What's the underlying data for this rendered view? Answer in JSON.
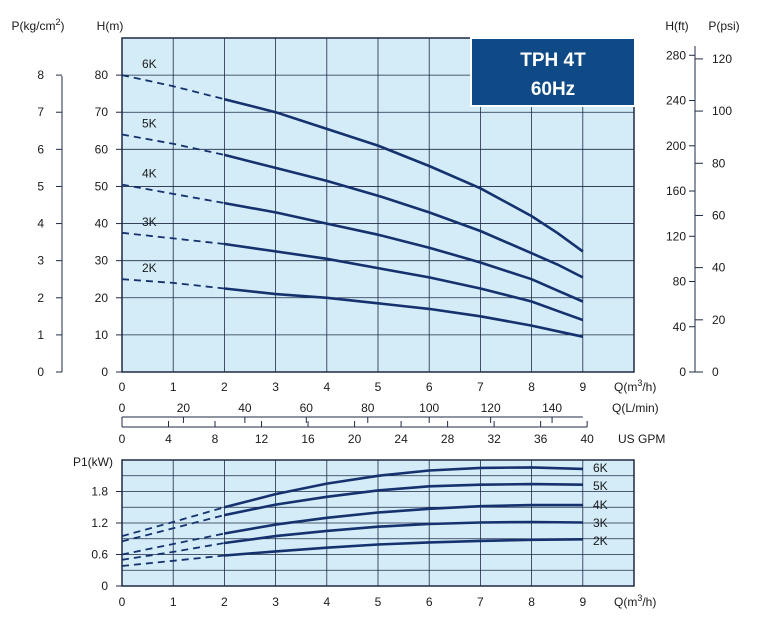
{
  "colors": {
    "plot_bg": "#d3ecf8",
    "grid": "#1f2a44",
    "curve": "#15326e",
    "badge_bg": "#0f4a86",
    "badge_border": "#ffffff",
    "text": "#1a1a1a"
  },
  "badge": {
    "line1": "TPH 4T",
    "line2": "60Hz"
  },
  "chart_data": [
    {
      "type": "line",
      "name_on_chart": "head",
      "x_unit": "Q(m³/h)",
      "xlim": [
        0,
        10
      ],
      "ylim": [
        0,
        90
      ],
      "grid": true,
      "axes": {
        "left_inner": {
          "label": "H(m)",
          "ticks": [
            "0",
            "10",
            "20",
            "30",
            "40",
            "50",
            "60",
            "70",
            "80"
          ]
        },
        "left_outer": {
          "label": "P(kg/cm²)",
          "ticks": [
            "0",
            "1",
            "2",
            "3",
            "4",
            "5",
            "6",
            "7",
            "8"
          ]
        },
        "right_inner": {
          "label": "H(ft)",
          "ticks": [
            "0",
            "40",
            "80",
            "120",
            "160",
            "200",
            "240",
            "280"
          ]
        },
        "right_outer": {
          "label": "P(psi)",
          "ticks": [
            "0",
            "20",
            "40",
            "60",
            "80",
            "100",
            "120"
          ]
        },
        "bottom": [
          {
            "label": "Q(m³/h)",
            "ticks": [
              "0",
              "1",
              "2",
              "3",
              "4",
              "5",
              "6",
              "7",
              "8",
              "9"
            ]
          },
          {
            "label": "Q(L/min)",
            "ticks": [
              "0",
              "20",
              "40",
              "60",
              "80",
              "100",
              "120",
              "140"
            ]
          },
          {
            "label": "US GPM",
            "ticks": [
              "0",
              "4",
              "8",
              "12",
              "16",
              "20",
              "24",
              "28",
              "32",
              "36",
              "40"
            ]
          }
        ]
      },
      "dashed_until_x": 2,
      "series": [
        {
          "name": "6K",
          "x": [
            0,
            1,
            2,
            3,
            4,
            5,
            6,
            7,
            8,
            8.5,
            9
          ],
          "y": [
            80,
            77,
            73.5,
            70,
            65.5,
            61,
            55.5,
            49.5,
            42,
            37.5,
            32.5
          ]
        },
        {
          "name": "5K",
          "x": [
            0,
            1,
            2,
            3,
            4,
            5,
            6,
            7,
            8,
            8.5,
            9
          ],
          "y": [
            64,
            61.5,
            58.5,
            55,
            51.5,
            47.5,
            43,
            38,
            32,
            29,
            25.5
          ]
        },
        {
          "name": "4K",
          "x": [
            0,
            1,
            2,
            3,
            4,
            5,
            6,
            7,
            8,
            8.5,
            9
          ],
          "y": [
            50.5,
            48,
            45.5,
            43,
            40,
            37,
            33.5,
            29.5,
            25,
            22,
            19
          ]
        },
        {
          "name": "3K",
          "x": [
            0,
            1,
            2,
            3,
            4,
            5,
            6,
            7,
            8,
            8.5,
            9
          ],
          "y": [
            37.5,
            36,
            34.5,
            32.5,
            30.5,
            28,
            25.5,
            22.5,
            19,
            16.5,
            14
          ]
        },
        {
          "name": "2K",
          "x": [
            0,
            1,
            2,
            3,
            4,
            5,
            6,
            7,
            8,
            8.5,
            9
          ],
          "y": [
            25,
            24,
            22.5,
            21,
            20,
            18.5,
            17,
            15,
            12.5,
            11,
            9.5
          ]
        }
      ]
    },
    {
      "type": "line",
      "name_on_chart": "power",
      "xlabel": "Q(m³/h)",
      "ylabel": "P1(kW)",
      "xlim": [
        0,
        10
      ],
      "ylim": [
        0,
        2.4
      ],
      "grid": true,
      "x_ticks": [
        "0",
        "1",
        "2",
        "3",
        "4",
        "5",
        "6",
        "7",
        "8",
        "9"
      ],
      "y_ticks": [
        "0",
        "0.6",
        "1.2",
        "1.8"
      ],
      "dashed_until_x": 2,
      "series": [
        {
          "name": "6K",
          "x": [
            0,
            1,
            2,
            3,
            4,
            5,
            6,
            7,
            8,
            9
          ],
          "y": [
            0.95,
            1.22,
            1.5,
            1.75,
            1.95,
            2.1,
            2.2,
            2.25,
            2.26,
            2.23
          ]
        },
        {
          "name": "5K",
          "x": [
            0,
            1,
            2,
            3,
            4,
            5,
            6,
            7,
            8,
            9
          ],
          "y": [
            0.85,
            1.1,
            1.35,
            1.55,
            1.7,
            1.82,
            1.9,
            1.93,
            1.94,
            1.93
          ]
        },
        {
          "name": "4K",
          "x": [
            0,
            1,
            2,
            3,
            4,
            5,
            6,
            7,
            8,
            9
          ],
          "y": [
            0.6,
            0.8,
            1.0,
            1.17,
            1.3,
            1.4,
            1.47,
            1.52,
            1.54,
            1.54
          ]
        },
        {
          "name": "3K",
          "x": [
            0,
            1,
            2,
            3,
            4,
            5,
            6,
            7,
            8,
            9
          ],
          "y": [
            0.5,
            0.65,
            0.82,
            0.95,
            1.05,
            1.13,
            1.18,
            1.21,
            1.22,
            1.21
          ]
        },
        {
          "name": "2K",
          "x": [
            0,
            1,
            2,
            3,
            4,
            5,
            6,
            7,
            8,
            9
          ],
          "y": [
            0.38,
            0.48,
            0.58,
            0.66,
            0.73,
            0.79,
            0.83,
            0.86,
            0.88,
            0.89
          ]
        }
      ]
    }
  ]
}
